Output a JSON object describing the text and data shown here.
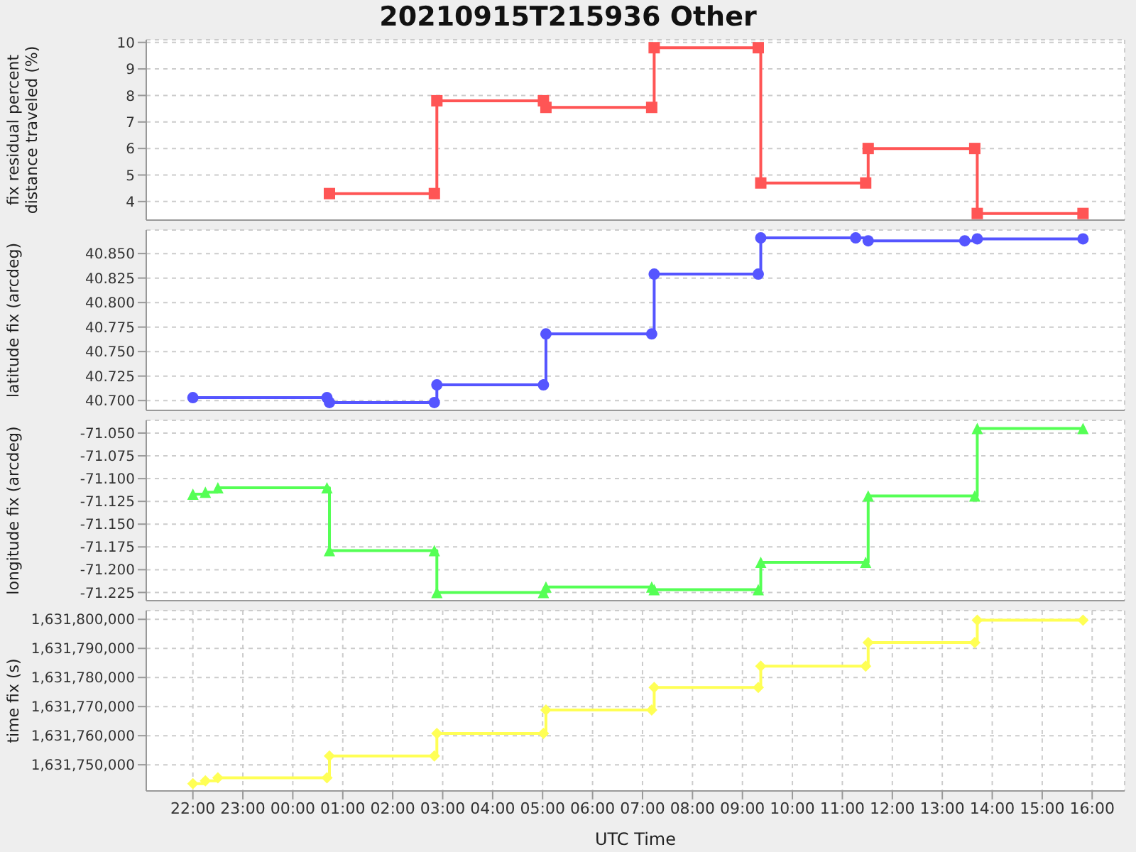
{
  "chart_data": [
    {
      "type": "step",
      "title": "20210915T215936 Other",
      "ylabel": "fix residual percent distance traveled (%)",
      "marker": "square",
      "grid": true,
      "tick_labels": "y",
      "xlim": [
        "2021-09-15T21:04",
        "2021-09-16T16:39"
      ],
      "xticks": [
        {
          "value": "2021-09-15T22:00",
          "label": null
        },
        {
          "value": "2021-09-15T23:00",
          "label": null
        },
        {
          "value": "2021-09-16T00:00",
          "label": null
        },
        {
          "value": "2021-09-16T01:00",
          "label": null
        },
        {
          "value": "2021-09-16T02:00",
          "label": null
        },
        {
          "value": "2021-09-16T03:00",
          "label": null
        },
        {
          "value": "2021-09-16T04:00",
          "label": null
        },
        {
          "value": "2021-09-16T05:00",
          "label": null
        },
        {
          "value": "2021-09-16T06:00",
          "label": null
        },
        {
          "value": "2021-09-16T07:00",
          "label": null
        },
        {
          "value": "2021-09-16T08:00",
          "label": null
        },
        {
          "value": "2021-09-16T09:00",
          "label": null
        },
        {
          "value": "2021-09-16T10:00",
          "label": null
        },
        {
          "value": "2021-09-16T11:00",
          "label": null
        },
        {
          "value": "2021-09-16T12:00",
          "label": null
        },
        {
          "value": "2021-09-16T13:00",
          "label": null
        },
        {
          "value": "2021-09-16T14:00",
          "label": null
        },
        {
          "value": "2021-09-16T15:00",
          "label": null
        },
        {
          "value": "2021-09-16T16:00",
          "label": null
        }
      ],
      "ylim": [
        3.3,
        10.1
      ],
      "yticks": [
        4,
        5,
        6,
        7,
        8,
        9,
        10
      ],
      "series": [
        {
          "color": "#ff5555",
          "x": [
            "2021-09-16T00:44",
            "2021-09-16T02:50",
            "2021-09-16T02:53",
            "2021-09-16T05:01",
            "2021-09-16T05:04",
            "2021-09-16T07:11",
            "2021-09-16T07:14",
            "2021-09-16T09:19",
            "2021-09-16T09:22",
            "2021-09-16T11:28",
            "2021-09-16T11:31",
            "2021-09-16T13:39",
            "2021-09-16T13:42",
            "2021-09-16T15:49"
          ],
          "values": [
            4.3,
            4.3,
            7.8,
            7.8,
            7.55,
            7.55,
            9.8,
            9.8,
            4.7,
            4.7,
            6.0,
            6.0,
            3.55,
            3.55
          ]
        }
      ]
    },
    {
      "type": "step",
      "ylabel": "latitude fix (arcdeg)",
      "marker": "circle",
      "grid": true,
      "tick_labels": "y",
      "xlim": [
        "2021-09-15T21:04",
        "2021-09-16T16:39"
      ],
      "xticks": [
        {
          "value": "2021-09-15T22:00",
          "label": null
        },
        {
          "value": "2021-09-15T23:00",
          "label": null
        },
        {
          "value": "2021-09-16T00:00",
          "label": null
        },
        {
          "value": "2021-09-16T01:00",
          "label": null
        },
        {
          "value": "2021-09-16T02:00",
          "label": null
        },
        {
          "value": "2021-09-16T03:00",
          "label": null
        },
        {
          "value": "2021-09-16T04:00",
          "label": null
        },
        {
          "value": "2021-09-16T05:00",
          "label": null
        },
        {
          "value": "2021-09-16T06:00",
          "label": null
        },
        {
          "value": "2021-09-16T07:00",
          "label": null
        },
        {
          "value": "2021-09-16T08:00",
          "label": null
        },
        {
          "value": "2021-09-16T09:00",
          "label": null
        },
        {
          "value": "2021-09-16T10:00",
          "label": null
        },
        {
          "value": "2021-09-16T11:00",
          "label": null
        },
        {
          "value": "2021-09-16T12:00",
          "label": null
        },
        {
          "value": "2021-09-16T13:00",
          "label": null
        },
        {
          "value": "2021-09-16T14:00",
          "label": null
        },
        {
          "value": "2021-09-16T15:00",
          "label": null
        },
        {
          "value": "2021-09-16T16:00",
          "label": null
        }
      ],
      "ylim": [
        40.69,
        40.874
      ],
      "yticks": [
        {
          "value": 40.7,
          "label": "40.700"
        },
        {
          "value": 40.725,
          "label": "40.725"
        },
        {
          "value": 40.75,
          "label": "40.750"
        },
        {
          "value": 40.775,
          "label": "40.775"
        },
        {
          "value": 40.8,
          "label": "40.800"
        },
        {
          "value": 40.825,
          "label": "40.825"
        },
        {
          "value": 40.85,
          "label": "40.850"
        }
      ],
      "series": [
        {
          "color": "#5555ff",
          "x": [
            "2021-09-15T22:00",
            "2021-09-16T00:41",
            "2021-09-16T00:44",
            "2021-09-16T02:50",
            "2021-09-16T02:53",
            "2021-09-16T05:01",
            "2021-09-16T05:04",
            "2021-09-16T07:11",
            "2021-09-16T07:14",
            "2021-09-16T09:19",
            "2021-09-16T09:22",
            "2021-09-16T11:16",
            "2021-09-16T11:31",
            "2021-09-16T13:27",
            "2021-09-16T13:42",
            "2021-09-16T15:49"
          ],
          "values": [
            40.703,
            40.703,
            40.698,
            40.698,
            40.716,
            40.716,
            40.768,
            40.768,
            40.829,
            40.829,
            40.866,
            40.866,
            40.863,
            40.863,
            40.865,
            40.865
          ]
        }
      ]
    },
    {
      "type": "step",
      "ylabel": "longitude fix (arcdeg)",
      "marker": "triangle",
      "grid": true,
      "tick_labels": "y",
      "xlim": [
        "2021-09-15T21:04",
        "2021-09-16T16:39"
      ],
      "xticks": [
        {
          "value": "2021-09-15T22:00",
          "label": null
        },
        {
          "value": "2021-09-15T23:00",
          "label": null
        },
        {
          "value": "2021-09-16T00:00",
          "label": null
        },
        {
          "value": "2021-09-16T01:00",
          "label": null
        },
        {
          "value": "2021-09-16T02:00",
          "label": null
        },
        {
          "value": "2021-09-16T03:00",
          "label": null
        },
        {
          "value": "2021-09-16T04:00",
          "label": null
        },
        {
          "value": "2021-09-16T05:00",
          "label": null
        },
        {
          "value": "2021-09-16T06:00",
          "label": null
        },
        {
          "value": "2021-09-16T07:00",
          "label": null
        },
        {
          "value": "2021-09-16T08:00",
          "label": null
        },
        {
          "value": "2021-09-16T09:00",
          "label": null
        },
        {
          "value": "2021-09-16T10:00",
          "label": null
        },
        {
          "value": "2021-09-16T11:00",
          "label": null
        },
        {
          "value": "2021-09-16T12:00",
          "label": null
        },
        {
          "value": "2021-09-16T13:00",
          "label": null
        },
        {
          "value": "2021-09-16T14:00",
          "label": null
        },
        {
          "value": "2021-09-16T15:00",
          "label": null
        },
        {
          "value": "2021-09-16T16:00",
          "label": null
        }
      ],
      "ylim": [
        -71.234,
        -71.036
      ],
      "yticks": [
        {
          "value": -71.225,
          "label": "-71.225"
        },
        {
          "value": -71.2,
          "label": "-71.200"
        },
        {
          "value": -71.175,
          "label": "-71.175"
        },
        {
          "value": -71.15,
          "label": "-71.150"
        },
        {
          "value": -71.125,
          "label": "-71.125"
        },
        {
          "value": -71.1,
          "label": "-71.100"
        },
        {
          "value": -71.075,
          "label": "-71.075"
        },
        {
          "value": -71.05,
          "label": "-71.050"
        }
      ],
      "series": [
        {
          "color": "#55ff55",
          "x": [
            "2021-09-15T22:00",
            "2021-09-15T22:15",
            "2021-09-15T22:30",
            "2021-09-16T00:41",
            "2021-09-16T00:44",
            "2021-09-16T02:50",
            "2021-09-16T02:53",
            "2021-09-16T05:01",
            "2021-09-16T05:04",
            "2021-09-16T07:11",
            "2021-09-16T07:14",
            "2021-09-16T09:19",
            "2021-09-16T09:22",
            "2021-09-16T11:28",
            "2021-09-16T11:31",
            "2021-09-16T13:39",
            "2021-09-16T13:42",
            "2021-09-16T15:49"
          ],
          "values": [
            -71.117,
            -71.115,
            -71.11,
            -71.11,
            -71.179,
            -71.179,
            -71.225,
            -71.225,
            -71.219,
            -71.219,
            -71.222,
            -71.222,
            -71.192,
            -71.192,
            -71.119,
            -71.119,
            -71.045,
            -71.045
          ]
        }
      ]
    },
    {
      "type": "step",
      "ylabel": "time fix (s)",
      "xlabel": "UTC Time",
      "marker": "diamond",
      "grid": true,
      "xlim": [
        "2021-09-15T21:04",
        "2021-09-16T16:39"
      ],
      "xticks": [
        {
          "value": "2021-09-15T22:00",
          "label": "22:00"
        },
        {
          "value": "2021-09-15T23:00",
          "label": "23:00"
        },
        {
          "value": "2021-09-16T00:00",
          "label": "00:00"
        },
        {
          "value": "2021-09-16T01:00",
          "label": "01:00"
        },
        {
          "value": "2021-09-16T02:00",
          "label": "02:00"
        },
        {
          "value": "2021-09-16T03:00",
          "label": "03:00"
        },
        {
          "value": "2021-09-16T04:00",
          "label": "04:00"
        },
        {
          "value": "2021-09-16T05:00",
          "label": "05:00"
        },
        {
          "value": "2021-09-16T06:00",
          "label": "06:00"
        },
        {
          "value": "2021-09-16T07:00",
          "label": "07:00"
        },
        {
          "value": "2021-09-16T08:00",
          "label": "08:00"
        },
        {
          "value": "2021-09-16T09:00",
          "label": "09:00"
        },
        {
          "value": "2021-09-16T10:00",
          "label": "10:00"
        },
        {
          "value": "2021-09-16T11:00",
          "label": "11:00"
        },
        {
          "value": "2021-09-16T12:00",
          "label": "12:00"
        },
        {
          "value": "2021-09-16T13:00",
          "label": "13:00"
        },
        {
          "value": "2021-09-16T14:00",
          "label": "14:00"
        },
        {
          "value": "2021-09-16T15:00",
          "label": "15:00"
        },
        {
          "value": "2021-09-16T16:00",
          "label": "16:00"
        }
      ],
      "ylim": [
        1631741000,
        1631803000
      ],
      "yticks": [
        {
          "value": 1631750000,
          "label": "1,631,750,000"
        },
        {
          "value": 1631760000,
          "label": "1,631,760,000"
        },
        {
          "value": 1631770000,
          "label": "1,631,770,000"
        },
        {
          "value": 1631780000,
          "label": "1,631,780,000"
        },
        {
          "value": 1631790000,
          "label": "1,631,790,000"
        },
        {
          "value": 1631800000,
          "label": "1,631,800,000"
        }
      ],
      "series": [
        {
          "color": "#ffff55",
          "x": [
            "2021-09-15T22:00",
            "2021-09-15T22:15",
            "2021-09-15T22:30",
            "2021-09-16T00:41",
            "2021-09-16T00:44",
            "2021-09-16T02:50",
            "2021-09-16T02:53",
            "2021-09-16T05:01",
            "2021-09-16T05:04",
            "2021-09-16T07:11",
            "2021-09-16T07:14",
            "2021-09-16T09:19",
            "2021-09-16T09:22",
            "2021-09-16T11:28",
            "2021-09-16T11:31",
            "2021-09-16T13:39",
            "2021-09-16T13:42",
            "2021-09-16T15:49"
          ],
          "values": [
            1631743500,
            1631744500,
            1631745500,
            1631745500,
            1631753000,
            1631753000,
            1631760800,
            1631760800,
            1631768800,
            1631768800,
            1631776600,
            1631776600,
            1631783900,
            1631783900,
            1631792000,
            1631792000,
            1631799700,
            1631799700
          ]
        }
      ]
    }
  ]
}
